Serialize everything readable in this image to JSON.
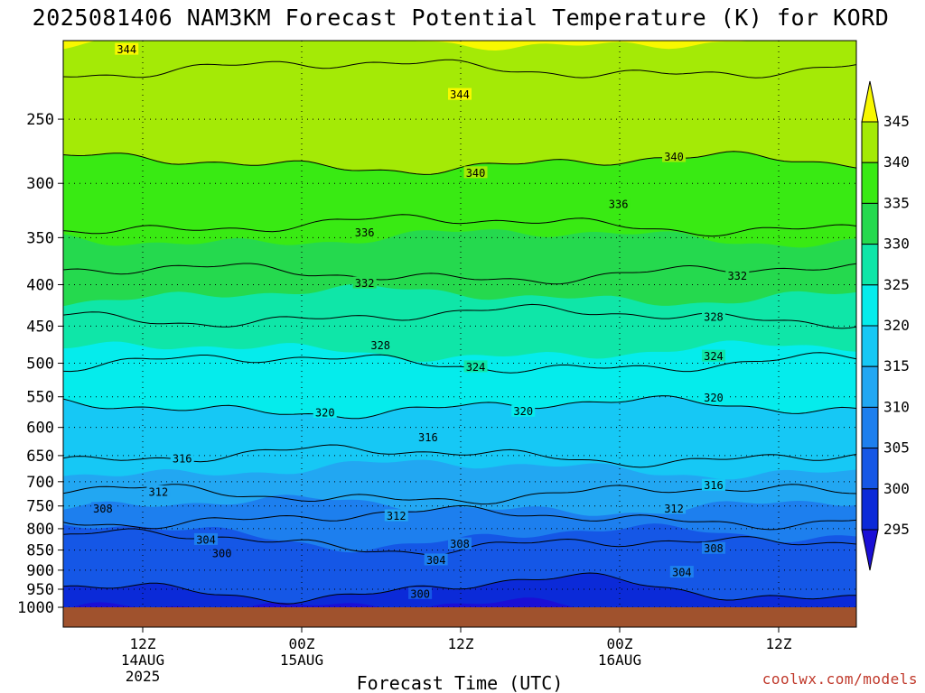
{
  "chart_data": {
    "type": "heatmap",
    "title": "2025081406 NAM3KM Forecast Potential Temperature (K) for KORD",
    "xlabel": "Forecast Time (UTC)",
    "ylabel": "",
    "credit": "coolwx.com/models",
    "y_axis": {
      "scale": "pressure (log-like), inverted",
      "range": [
        1000,
        200
      ],
      "ticks": [
        "250",
        "300",
        "350",
        "400",
        "450",
        "500",
        "550",
        "600",
        "650",
        "700",
        "750",
        "800",
        "850",
        "900",
        "950",
        "1000"
      ],
      "grid": "dotted"
    },
    "x_axis": {
      "ticks": [
        {
          "hour": "12Z",
          "date": "14AUG",
          "year": "2025"
        },
        {
          "hour": "00Z",
          "date": "15AUG",
          "year": ""
        },
        {
          "hour": "12Z",
          "date": "",
          "year": ""
        },
        {
          "hour": "00Z",
          "date": "16AUG",
          "year": ""
        },
        {
          "hour": "12Z",
          "date": "",
          "year": ""
        }
      ],
      "grid": "dotted"
    },
    "colorbar": {
      "labels": [
        "295",
        "300",
        "305",
        "310",
        "315",
        "320",
        "325",
        "330",
        "335",
        "340",
        "345"
      ],
      "colors": [
        "#1a0fd6",
        "#0b2ad8",
        "#1557e6",
        "#1d7fee",
        "#22a7f2",
        "#16c8f5",
        "#05ecec",
        "#0fe6a8",
        "#25d94e",
        "#39ea13",
        "#a4ea06",
        "#f8f800"
      ],
      "extend": "both"
    },
    "ground_color": "#a0522d",
    "contour_interval": 4,
    "profile": [
      {
        "p": 1000,
        "theta": 299
      },
      {
        "p": 950,
        "theta": 300
      },
      {
        "p": 900,
        "theta": 301
      },
      {
        "p": 850,
        "theta": 303
      },
      {
        "p": 800,
        "theta": 306
      },
      {
        "p": 750,
        "theta": 310
      },
      {
        "p": 700,
        "theta": 314
      },
      {
        "p": 650,
        "theta": 316
      },
      {
        "p": 600,
        "theta": 318
      },
      {
        "p": 550,
        "theta": 321
      },
      {
        "p": 500,
        "theta": 324
      },
      {
        "p": 450,
        "theta": 327
      },
      {
        "p": 400,
        "theta": 331
      },
      {
        "p": 350,
        "theta": 335
      },
      {
        "p": 300,
        "theta": 339
      },
      {
        "p": 250,
        "theta": 342
      },
      {
        "p": 200,
        "theta": 345
      }
    ],
    "contour_labels": [
      {
        "text": "344",
        "t": 0.08,
        "p": 205
      },
      {
        "text": "344",
        "t": 0.5,
        "p": 233
      },
      {
        "text": "340",
        "t": 0.52,
        "p": 291
      },
      {
        "text": "340",
        "t": 0.77,
        "p": 278
      },
      {
        "text": "336",
        "t": 0.38,
        "p": 345
      },
      {
        "text": "336",
        "t": 0.7,
        "p": 318
      },
      {
        "text": "332",
        "t": 0.38,
        "p": 398
      },
      {
        "text": "332",
        "t": 0.85,
        "p": 390
      },
      {
        "text": "328",
        "t": 0.4,
        "p": 475
      },
      {
        "text": "328",
        "t": 0.82,
        "p": 438
      },
      {
        "text": "324",
        "t": 0.52,
        "p": 505
      },
      {
        "text": "324",
        "t": 0.82,
        "p": 490
      },
      {
        "text": "320",
        "t": 0.33,
        "p": 575
      },
      {
        "text": "320",
        "t": 0.58,
        "p": 573
      },
      {
        "text": "320",
        "t": 0.82,
        "p": 551
      },
      {
        "text": "316",
        "t": 0.46,
        "p": 617
      },
      {
        "text": "316",
        "t": 0.15,
        "p": 655
      },
      {
        "text": "316",
        "t": 0.82,
        "p": 707
      },
      {
        "text": "312",
        "t": 0.12,
        "p": 720
      },
      {
        "text": "312",
        "t": 0.42,
        "p": 771
      },
      {
        "text": "312",
        "t": 0.77,
        "p": 755
      },
      {
        "text": "308",
        "t": 0.05,
        "p": 755
      },
      {
        "text": "308",
        "t": 0.5,
        "p": 835
      },
      {
        "text": "308",
        "t": 0.82,
        "p": 846
      },
      {
        "text": "304",
        "t": 0.18,
        "p": 825
      },
      {
        "text": "304",
        "t": 0.47,
        "p": 874
      },
      {
        "text": "304",
        "t": 0.78,
        "p": 905
      },
      {
        "text": "300",
        "t": 0.2,
        "p": 858
      },
      {
        "text": "300",
        "t": 0.45,
        "p": 962
      }
    ]
  }
}
